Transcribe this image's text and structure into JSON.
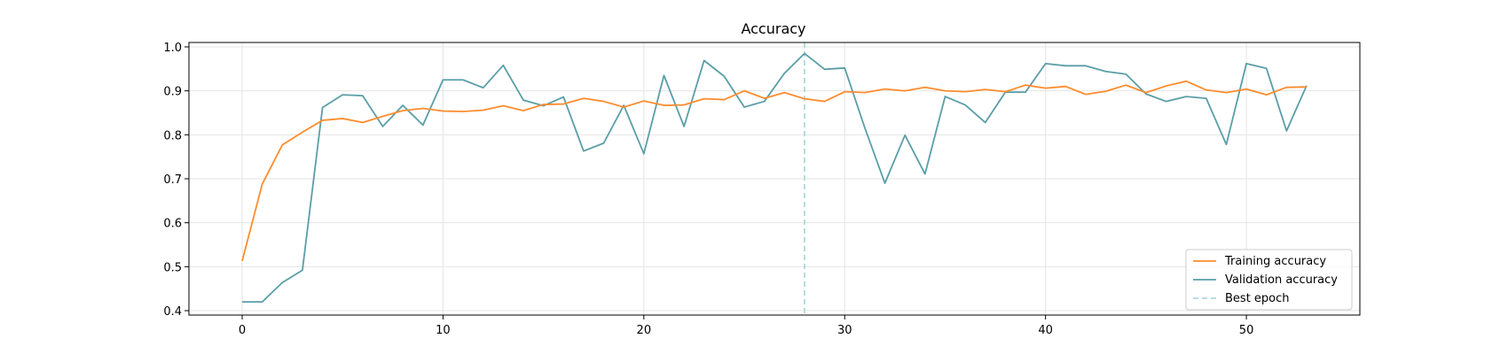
{
  "chart_data": {
    "type": "line",
    "title": "Accuracy",
    "xlabel": "",
    "ylabel": "",
    "xlim": [
      -2.65,
      55.65
    ],
    "ylim": [
      0.39,
      1.01
    ],
    "xticks": [
      0,
      10,
      20,
      30,
      40,
      50
    ],
    "yticks": [
      0.4,
      0.5,
      0.6,
      0.7,
      0.8,
      0.9,
      1.0
    ],
    "ytick_labels": [
      "0.4",
      "0.5",
      "0.6",
      "0.7",
      "0.8",
      "0.9",
      "1.0"
    ],
    "grid": true,
    "legend_position": "lower-right",
    "best_epoch": 28,
    "best_epoch_label": "Best epoch",
    "best_epoch_color": "#b0d8dc",
    "series": [
      {
        "name": "Training accuracy",
        "color": "#ff8c2e",
        "values": [
          0.513,
          0.688,
          0.777,
          0.806,
          0.833,
          0.837,
          0.828,
          0.842,
          0.855,
          0.86,
          0.854,
          0.853,
          0.856,
          0.866,
          0.855,
          0.869,
          0.87,
          0.883,
          0.876,
          0.863,
          0.877,
          0.867,
          0.868,
          0.882,
          0.88,
          0.9,
          0.883,
          0.896,
          0.882,
          0.876,
          0.898,
          0.896,
          0.904,
          0.9,
          0.908,
          0.9,
          0.898,
          0.903,
          0.898,
          0.913,
          0.906,
          0.91,
          0.892,
          0.899,
          0.913,
          0.896,
          0.911,
          0.922,
          0.902,
          0.896,
          0.904,
          0.891,
          0.908,
          0.909
        ]
      },
      {
        "name": "Validation accuracy",
        "color": "#5a9ea8",
        "values": [
          0.42,
          0.42,
          0.464,
          0.492,
          0.862,
          0.891,
          0.889,
          0.819,
          0.867,
          0.822,
          0.925,
          0.925,
          0.907,
          0.958,
          0.879,
          0.866,
          0.886,
          0.763,
          0.781,
          0.867,
          0.757,
          0.935,
          0.819,
          0.969,
          0.933,
          0.863,
          0.876,
          0.94,
          0.985,
          0.949,
          0.952,
          0.816,
          0.69,
          0.799,
          0.711,
          0.887,
          0.868,
          0.828,
          0.897,
          0.897,
          0.962,
          0.957,
          0.957,
          0.944,
          0.938,
          0.893,
          0.876,
          0.887,
          0.883,
          0.778,
          0.962,
          0.951,
          0.809,
          0.912
        ]
      }
    ]
  }
}
